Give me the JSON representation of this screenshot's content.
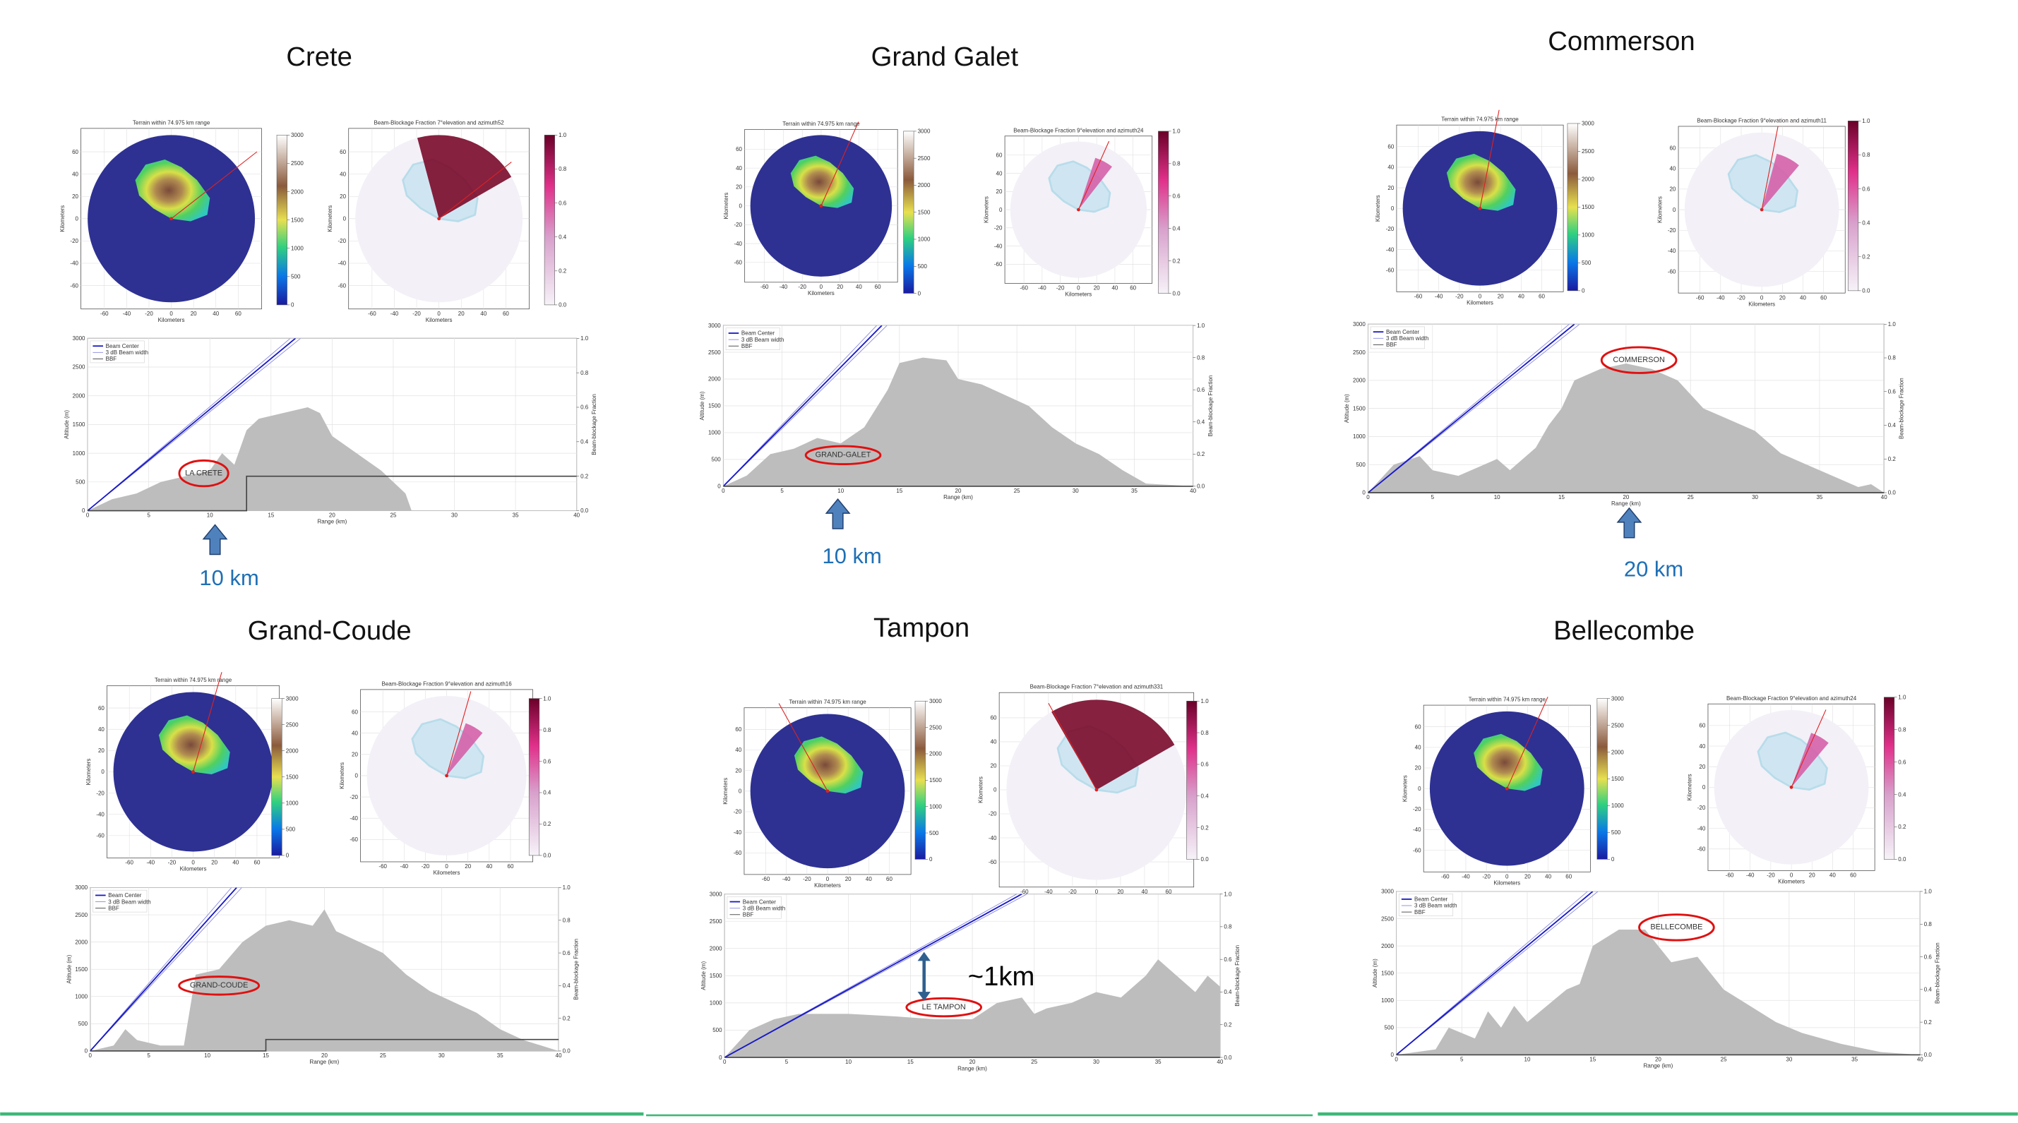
{
  "panels": [
    {
      "title": "Crete",
      "terrain_title": "Terrain within 74.975 km range",
      "bbf_title": "Beam-Blockage Fraction 7°elevation and azimuth52",
      "station_label": "LA CRETE",
      "annotation": "10 km",
      "terrain": {
        "x": [
          0,
          2,
          4,
          6,
          8,
          10,
          11,
          12,
          13,
          14,
          16,
          18,
          19,
          20,
          22,
          24,
          26,
          26.5
        ],
        "y": [
          0,
          200,
          300,
          500,
          600,
          700,
          1000,
          800,
          1400,
          1600,
          1700,
          1800,
          1700,
          1300,
          1000,
          700,
          300,
          0
        ]
      },
      "beam_center": {
        "x": [
          0,
          17
        ],
        "y": [
          0,
          3000
        ]
      },
      "bbf": {
        "x": [
          0,
          13,
          13,
          40
        ],
        "y": [
          0,
          0,
          0.2,
          0.2
        ]
      }
    },
    {
      "title": "Grand Galet",
      "terrain_title": "Terrain within 74.975 km range",
      "bbf_title": "Beam-Blockage Fraction 9°elevation and azimuth24",
      "station_label": "GRAND-GALET",
      "annotation": "10 km",
      "terrain": {
        "x": [
          0,
          2,
          4,
          6,
          8,
          10,
          12,
          14,
          15,
          17,
          19,
          20,
          22,
          24,
          26,
          28,
          30,
          32,
          34,
          36,
          40
        ],
        "y": [
          0,
          200,
          600,
          700,
          900,
          800,
          1100,
          1800,
          2300,
          2400,
          2350,
          2000,
          1900,
          1700,
          1500,
          1100,
          800,
          600,
          300,
          50,
          0
        ]
      },
      "beam_center": {
        "x": [
          0,
          13.5
        ],
        "y": [
          0,
          3000
        ]
      },
      "bbf": {
        "x": [
          0,
          40
        ],
        "y": [
          0,
          0
        ]
      }
    },
    {
      "title": "Commerson",
      "terrain_title": "Terrain within 74.975 km range",
      "bbf_title": "Beam-Blockage Fraction 9°elevation and azimuth11",
      "station_label": "COMMERSON",
      "annotation": "20 km",
      "terrain": {
        "x": [
          0,
          2,
          4,
          5,
          7,
          9,
          10,
          11,
          13,
          14,
          15,
          16,
          18,
          20,
          22,
          24,
          26,
          28,
          30,
          32,
          34,
          36,
          38,
          39,
          40
        ],
        "y": [
          0,
          500,
          650,
          400,
          300,
          500,
          600,
          400,
          800,
          1200,
          1500,
          2000,
          2200,
          2300,
          2200,
          2000,
          1500,
          1300,
          1100,
          700,
          500,
          300,
          100,
          150,
          0
        ]
      },
      "beam_center": {
        "x": [
          0,
          16
        ],
        "y": [
          0,
          3000
        ]
      },
      "bbf": {
        "x": [
          0,
          40
        ],
        "y": [
          0,
          0
        ]
      }
    },
    {
      "title": "Grand-Coude",
      "terrain_title": "Terrain within 74.975 km range",
      "bbf_title": "Beam-Blockage Fraction 9°elevation and azimuth16",
      "station_label": "GRAND-COUDE",
      "terrain": {
        "x": [
          0,
          2,
          3,
          4,
          6,
          8,
          9,
          11,
          13,
          15,
          17,
          19,
          20,
          21,
          23,
          25,
          27,
          29,
          31,
          33,
          35,
          37,
          40
        ],
        "y": [
          0,
          100,
          400,
          200,
          100,
          100,
          1400,
          1500,
          2000,
          2300,
          2400,
          2300,
          2600,
          2200,
          2000,
          1800,
          1400,
          1100,
          900,
          700,
          400,
          200,
          0
        ]
      },
      "beam_center": {
        "x": [
          0,
          12.5
        ],
        "y": [
          0,
          3000
        ]
      },
      "bbf": {
        "x": [
          0,
          15,
          15,
          40
        ],
        "y": [
          0,
          0,
          0.07,
          0.07
        ]
      }
    },
    {
      "title": "Tampon",
      "terrain_title": "Terrain within 74.975 km range",
      "bbf_title": "Beam-Blockage Fraction 7°elevation and azimuth331",
      "station_label": "LE TAMPON",
      "annotation": "~1km",
      "terrain": {
        "x": [
          0,
          2,
          4,
          6,
          10,
          14,
          17,
          20,
          22,
          24,
          25,
          26,
          28,
          30,
          32,
          34,
          35,
          36,
          38,
          39,
          40
        ],
        "y": [
          0,
          500,
          700,
          800,
          800,
          750,
          700,
          700,
          1000,
          1100,
          800,
          900,
          1000,
          1200,
          1100,
          1500,
          1800,
          1600,
          1200,
          1500,
          1300
        ]
      },
      "beam_center": {
        "x": [
          0,
          24
        ],
        "y": [
          0,
          3000
        ]
      },
      "bbf": {
        "x": [
          0,
          40
        ],
        "y": [
          0,
          0
        ]
      }
    },
    {
      "title": "Bellecombe",
      "terrain_title": "Terrain within 74.975 km range",
      "bbf_title": "Beam-Blockage Fraction 9°elevation and azimuth24",
      "station_label": "BELLECOMBE",
      "terrain": {
        "x": [
          0,
          3,
          4,
          6,
          7,
          8,
          9,
          10,
          12,
          13,
          14,
          15,
          17,
          19,
          20,
          21,
          23,
          25,
          27,
          29,
          31,
          34,
          37,
          40
        ],
        "y": [
          0,
          100,
          500,
          300,
          800,
          500,
          900,
          600,
          1000,
          1200,
          1300,
          2000,
          2300,
          2300,
          2000,
          1700,
          1800,
          1200,
          900,
          600,
          400,
          200,
          50,
          0
        ]
      },
      "beam_center": {
        "x": [
          0,
          15
        ],
        "y": [
          0,
          3000
        ]
      },
      "bbf": {
        "x": [
          0,
          40
        ],
        "y": [
          0,
          0
        ]
      }
    }
  ],
  "profile_axes": {
    "xlim": [
      0,
      40
    ],
    "ylim": [
      0,
      3000
    ],
    "y2lim": [
      0,
      1
    ],
    "xticks": [
      0,
      5,
      10,
      15,
      20,
      25,
      30,
      35,
      40
    ],
    "yticks": [
      0,
      500,
      1000,
      1500,
      2000,
      2500,
      3000
    ],
    "y2ticks": [
      {
        "value": 0,
        "label": "0.0"
      },
      0.2,
      0.4,
      0.6,
      0.8,
      {
        "value": 1,
        "label": "1.0"
      }
    ],
    "xlabel": "Range (km)",
    "ylabel": "Altitude (m)",
    "y2label": "Beam-blockage Fraction",
    "legend": [
      "Beam Center",
      "3 dB Beam width",
      "BBF"
    ]
  },
  "map": {
    "lim": [
      -75,
      75
    ],
    "ticks": [
      -60,
      -40,
      -20,
      0,
      20,
      40,
      60
    ],
    "label": "Kilometers",
    "terrain_cbar_lim": [
      0,
      3000
    ],
    "terrain_cbar_ticks": [
      0,
      500,
      1000,
      1500,
      2000,
      2500,
      3000
    ],
    "bbf_cbar_lim": [
      0,
      1
    ],
    "bbf_cbar_ticks": [
      {
        "value": 0,
        "label": "0.0"
      },
      0.2,
      0.4,
      0.6,
      0.8,
      {
        "value": 1,
        "label": "1.0"
      }
    ]
  }
}
